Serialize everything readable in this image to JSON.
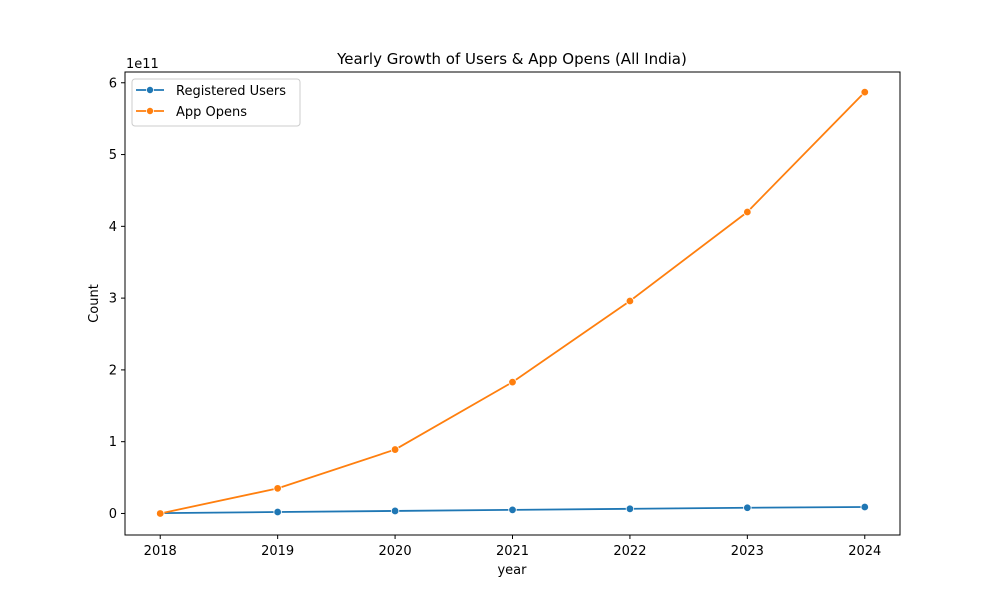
{
  "chart_data": {
    "type": "line",
    "title": "Yearly Growth of Users & App Opens (All India)",
    "xlabel": "year",
    "ylabel": "Count",
    "y_offset_label": "1e11",
    "y_scale": 100000000000,
    "x": [
      2018,
      2019,
      2020,
      2021,
      2022,
      2023,
      2024
    ],
    "x_tick_labels": [
      "2018",
      "2019",
      "2020",
      "2021",
      "2022",
      "2023",
      "2024"
    ],
    "y_ticks": [
      0,
      1,
      2,
      3,
      4,
      5,
      6
    ],
    "y_tick_labels": [
      "0",
      "1",
      "2",
      "3",
      "4",
      "5",
      "6"
    ],
    "xlim": [
      2017.7,
      2024.3
    ],
    "ylim": [
      -0.3,
      6.15
    ],
    "grid": false,
    "legend_position": "upper-left",
    "series": [
      {
        "name": "Registered Users",
        "color": "#1f77b4",
        "values": [
          0.005,
          0.02,
          0.035,
          0.05,
          0.065,
          0.08,
          0.09
        ]
      },
      {
        "name": "App Opens",
        "color": "#ff7f0e",
        "values": [
          0.0,
          0.35,
          0.89,
          1.83,
          2.96,
          4.2,
          5.87
        ]
      }
    ]
  }
}
